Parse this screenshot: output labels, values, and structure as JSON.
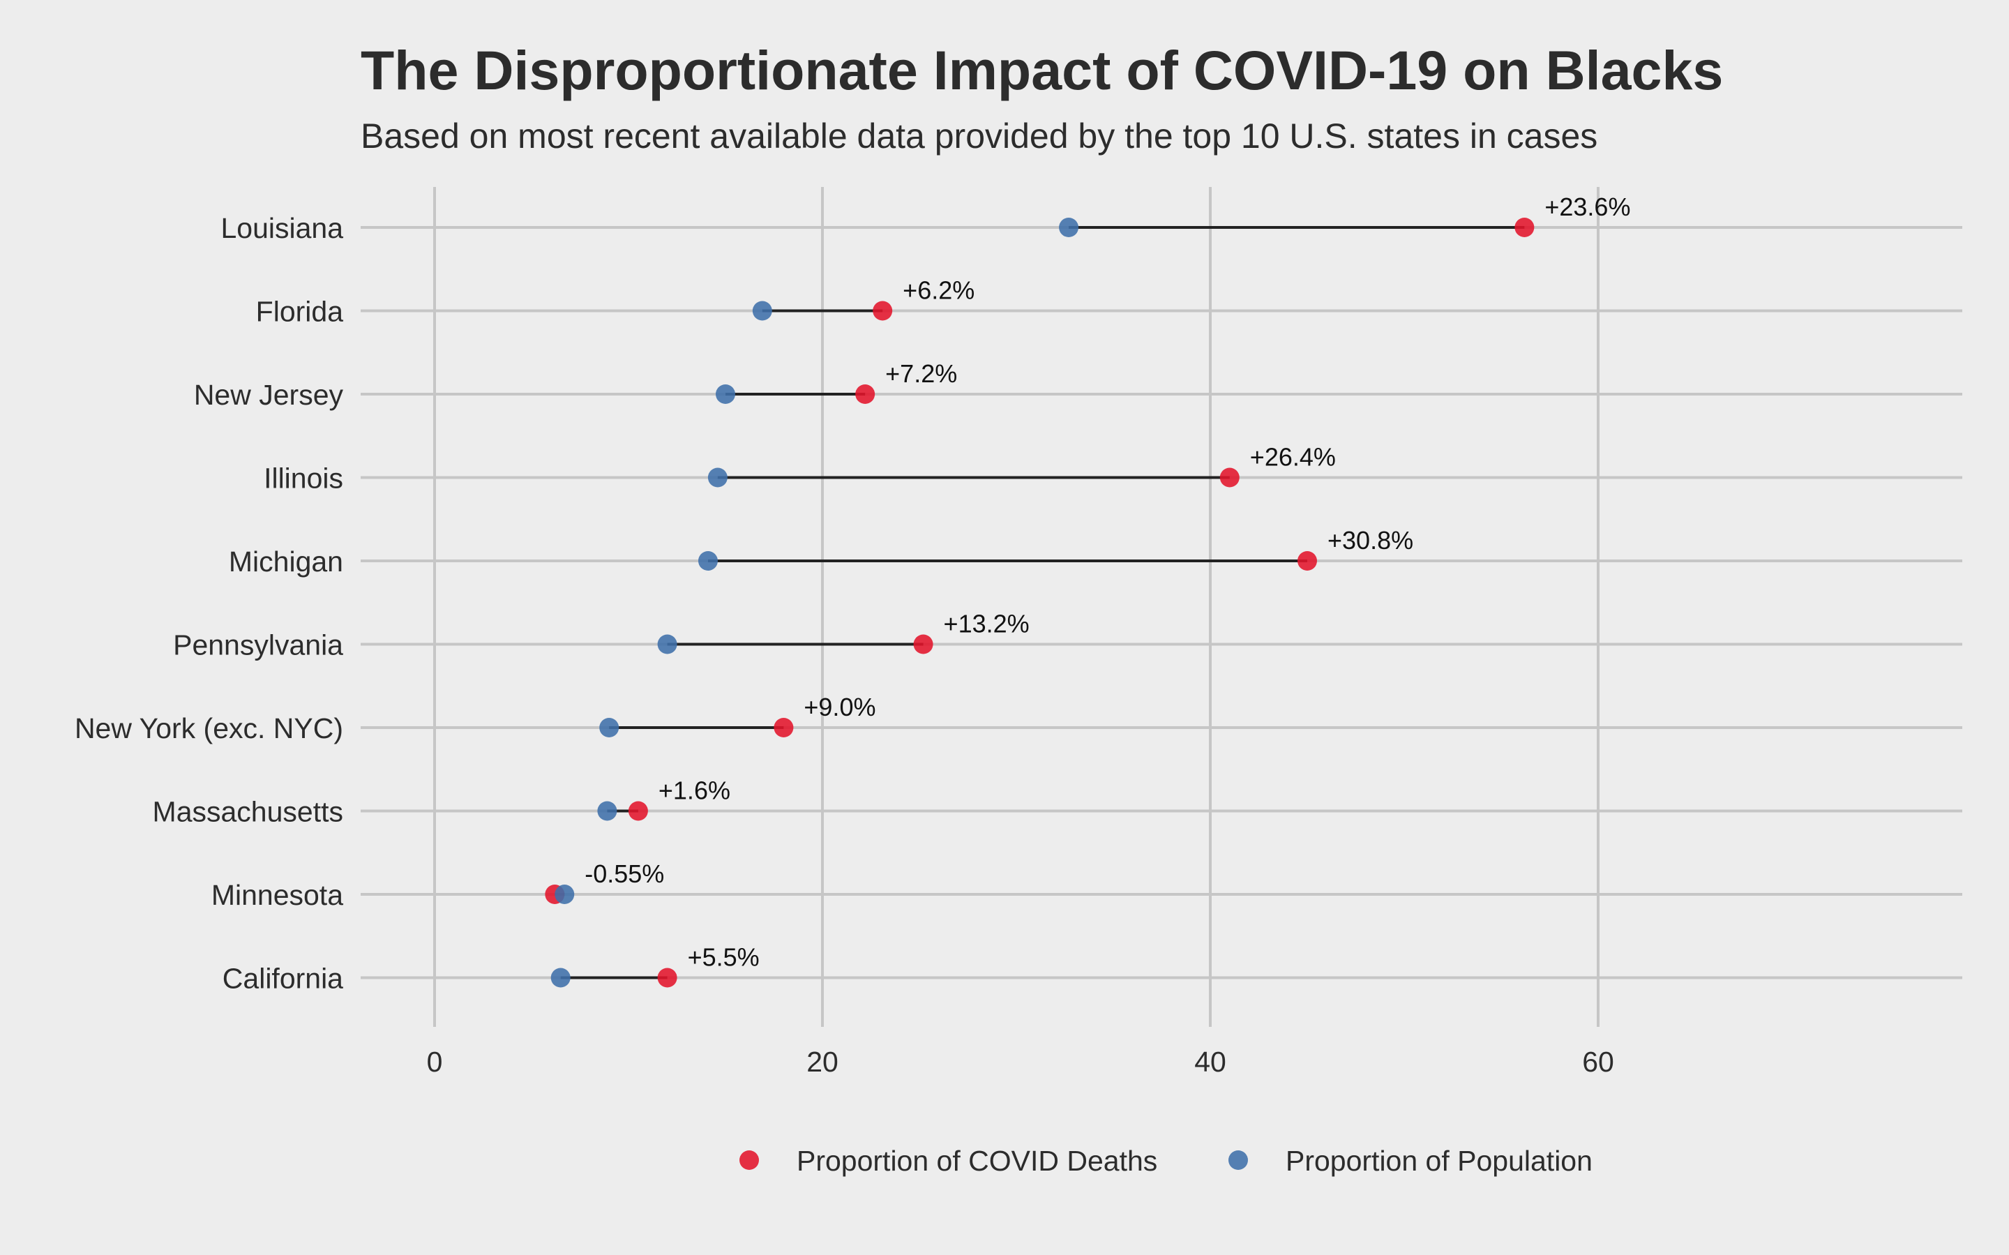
{
  "chart_data": {
    "type": "dumbbell",
    "title": "The Disproportionate Impact of COVID-19 on Blacks",
    "subtitle": "Based on most recent available data provided by the top 10 U.S. states in cases",
    "xlim": [
      -3.8,
      78.8
    ],
    "x_ticks": [
      0,
      20,
      40,
      60
    ],
    "x_tick_labels": [
      "0",
      "20",
      "40",
      "60"
    ],
    "grid": true,
    "legend_position": "bottom",
    "categories": [
      "Louisiana",
      "Florida",
      "New Jersey",
      "Illinois",
      "Michigan",
      "Pennsylvania",
      "New York (exc. NYC)",
      "Massachusetts",
      "Minnesota",
      "California"
    ],
    "series": [
      {
        "name": "Proportion of COVID Deaths",
        "color": "#e3142b",
        "values": [
          56.2,
          23.1,
          22.2,
          41.0,
          45.0,
          25.2,
          18.0,
          10.5,
          6.2,
          12.0
        ]
      },
      {
        "name": "Proportion of Population",
        "color": "#3f70aa",
        "values": [
          32.7,
          16.9,
          15.0,
          14.6,
          14.1,
          12.0,
          9.0,
          8.9,
          6.7,
          6.5
        ]
      }
    ],
    "annotations": [
      "+23.6%",
      "+6.2%",
      "+7.2%",
      "+26.4%",
      "+30.8%",
      "+13.2%",
      "+9.0%",
      "+1.6%",
      "-0.55%",
      "+5.5%"
    ]
  }
}
